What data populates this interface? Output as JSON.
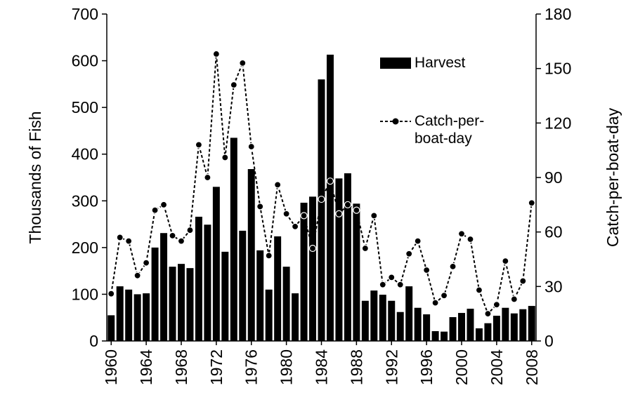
{
  "chart_data": {
    "type": "bar",
    "y_label": "Thousands of Fish",
    "y2_label": "Catch-per-boat-day",
    "x": [
      1960,
      1961,
      1962,
      1963,
      1964,
      1965,
      1966,
      1967,
      1968,
      1969,
      1970,
      1971,
      1972,
      1973,
      1974,
      1975,
      1976,
      1977,
      1978,
      1979,
      1980,
      1981,
      1982,
      1983,
      1984,
      1985,
      1986,
      1987,
      1988,
      1989,
      1990,
      1991,
      1992,
      1993,
      1994,
      1995,
      1996,
      1997,
      1998,
      1999,
      2000,
      2001,
      2002,
      2003,
      2004,
      2005,
      2006,
      2007,
      2008
    ],
    "series": [
      {
        "name": "Harvest",
        "type": "bar",
        "color": "#000000",
        "values": [
          55,
          117,
          110,
          100,
          102,
          200,
          231,
          159,
          165,
          156,
          266,
          249,
          330,
          191,
          435,
          236,
          368,
          194,
          110,
          224,
          159,
          102,
          296,
          309,
          560,
          613,
          348,
          359,
          294,
          86,
          108,
          99,
          86,
          62,
          117,
          71,
          57,
          21,
          20,
          51,
          60,
          69,
          27,
          38,
          54,
          71,
          59,
          68,
          75
        ]
      },
      {
        "name": "Catch-per-boat-day",
        "type": "line",
        "axis": "y2",
        "color": "#000000",
        "values": [
          26,
          57,
          55,
          36,
          43,
          72,
          75,
          58,
          55,
          61,
          108,
          90,
          158,
          101,
          141,
          153,
          107,
          74,
          47,
          86,
          70,
          63,
          69,
          51,
          78,
          88,
          70,
          75,
          72,
          51,
          69,
          31,
          35,
          31,
          48,
          55,
          39,
          21,
          25,
          41,
          59,
          56,
          28,
          15,
          20,
          44,
          23,
          33,
          76
        ]
      }
    ],
    "xlim": [
      1959.5,
      2008.5
    ],
    "xticks": [
      1960,
      1964,
      1968,
      1972,
      1976,
      1980,
      1984,
      1988,
      1992,
      1996,
      2000,
      2004,
      2008
    ],
    "ylim": [
      0,
      700
    ],
    "yticks": [
      0,
      100,
      200,
      300,
      400,
      500,
      600,
      700
    ],
    "y2lim": [
      0,
      180
    ],
    "y2ticks": [
      0,
      30,
      60,
      90,
      120,
      150,
      180
    ]
  }
}
